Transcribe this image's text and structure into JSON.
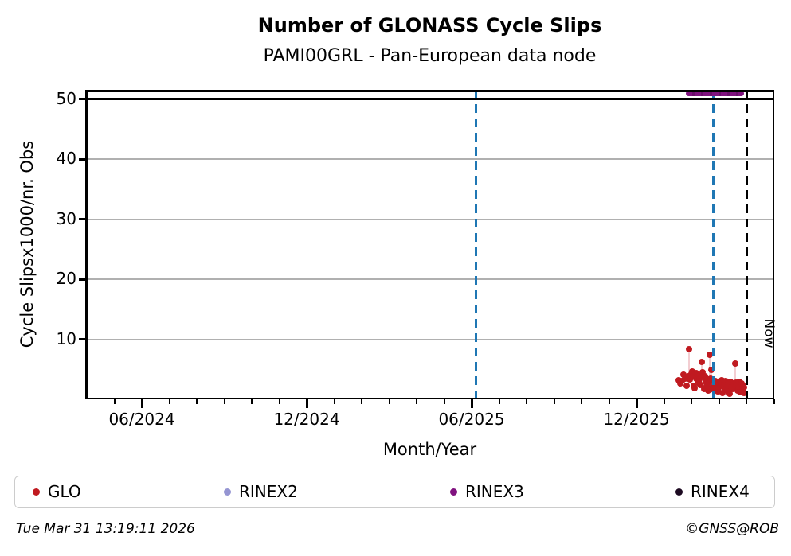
{
  "title": "Number of GLONASS Cycle Slips",
  "subtitle": "PAMI00GRL - Pan-European data node",
  "footer": {
    "timestamp": "Tue Mar 31 13:19:11 2026",
    "credit": "©GNSS@ROB"
  },
  "legend": [
    {
      "label": "GLO",
      "color": "#c01a20"
    },
    {
      "label": "RINEX2",
      "color": "#9595d2"
    },
    {
      "label": "RINEX3",
      "color": "#80127f"
    },
    {
      "label": "RINEX4",
      "color": "#1d0a22"
    }
  ],
  "chart_data": {
    "type": "scatter",
    "title": "Number of GLONASS Cycle Slips",
    "subtitle": "PAMI00GRL - Pan-European data node",
    "xlabel": "Month/Year",
    "ylabel": "Cycle Slipsx1000/nr. Obs",
    "x_unit": "months since 2024-01-01",
    "xlim": [
      2.94,
      28.02
    ],
    "ylim": [
      0,
      51.5
    ],
    "grid": "horizontal-only",
    "grid_color": "#b0b0b0",
    "x_major_ticks": [
      {
        "m": 5,
        "label": "06/2024"
      },
      {
        "m": 11,
        "label": "12/2024"
      },
      {
        "m": 17,
        "label": "06/2025"
      },
      {
        "m": 23,
        "label": "12/2025"
      }
    ],
    "x_minor_tick_months": [
      4,
      5,
      6,
      7,
      8,
      9,
      10,
      11,
      12,
      13,
      14,
      15,
      16,
      17,
      18,
      19,
      20,
      21,
      22,
      23,
      24,
      25,
      26,
      27,
      28
    ],
    "y_ticks": [
      10,
      20,
      30,
      40,
      50
    ],
    "annotations": {
      "threshold_line": {
        "v": 50,
        "color": "#000000",
        "style": "solid"
      },
      "event_lines": [
        {
          "m": 17.15,
          "color": "#1f77b4",
          "style": "dashed"
        },
        {
          "m": 25.8,
          "color": "#1f77b4",
          "style": "dashed"
        }
      ],
      "now_line": {
        "m": 27.0,
        "label": "Now",
        "color": "#000000",
        "style": "dashed"
      },
      "rinex3_span": {
        "m_start": 24.8,
        "m_end": 26.91,
        "v": 50.9,
        "color": "#80127f"
      }
    },
    "series": [
      {
        "name": "GLO",
        "color": "#c01a20",
        "points": [
          [
            24.53,
            3.2
          ],
          [
            24.6,
            2.7
          ],
          [
            24.66,
            3.0
          ],
          [
            24.72,
            4.1
          ],
          [
            24.78,
            3.4
          ],
          [
            24.84,
            2.2
          ],
          [
            24.88,
            3.8
          ],
          [
            24.91,
            8.3
          ],
          [
            24.94,
            3.3
          ],
          [
            24.97,
            3.6
          ],
          [
            25.0,
            4.3
          ],
          [
            25.03,
            4.6
          ],
          [
            25.06,
            3.9
          ],
          [
            25.09,
            2.3
          ],
          [
            25.13,
            1.9
          ],
          [
            25.16,
            3.5
          ],
          [
            25.18,
            4.4
          ],
          [
            25.22,
            3.1
          ],
          [
            25.25,
            4.0
          ],
          [
            25.28,
            2.6
          ],
          [
            25.3,
            3.3
          ],
          [
            25.33,
            2.4
          ],
          [
            25.38,
            6.2
          ],
          [
            25.4,
            4.5
          ],
          [
            25.43,
            3.7
          ],
          [
            25.47,
            1.7
          ],
          [
            25.5,
            3.8
          ],
          [
            25.52,
            2.9
          ],
          [
            25.55,
            2.2
          ],
          [
            25.57,
            3.3
          ],
          [
            25.6,
            2.8
          ],
          [
            25.62,
            1.45
          ],
          [
            25.67,
            7.4
          ],
          [
            25.7,
            3.5
          ],
          [
            25.72,
            4.9
          ],
          [
            25.74,
            3.0
          ],
          [
            25.76,
            2.0
          ],
          [
            25.81,
            1.6
          ],
          [
            25.84,
            2.1
          ],
          [
            25.86,
            3.0
          ],
          [
            25.9,
            2.5
          ],
          [
            25.93,
            2.3
          ],
          [
            25.95,
            1.3
          ],
          [
            25.98,
            1.8
          ],
          [
            26.0,
            2.9
          ],
          [
            26.04,
            3.1
          ],
          [
            26.06,
            2.7
          ],
          [
            26.09,
            2.2
          ],
          [
            26.11,
            3.2
          ],
          [
            26.13,
            1.1
          ],
          [
            26.16,
            2.9
          ],
          [
            26.18,
            2.6
          ],
          [
            26.22,
            1.9
          ],
          [
            26.25,
            3.1
          ],
          [
            26.27,
            2.4
          ],
          [
            26.31,
            1.4
          ],
          [
            26.34,
            2.7
          ],
          [
            26.36,
            2.25
          ],
          [
            26.4,
            0.9
          ],
          [
            26.43,
            2.9
          ],
          [
            26.45,
            2.0
          ],
          [
            26.47,
            2.3
          ],
          [
            26.5,
            1.7
          ],
          [
            26.52,
            2.0
          ],
          [
            26.54,
            2.6
          ],
          [
            26.59,
            6.0
          ],
          [
            26.61,
            2.8
          ],
          [
            26.63,
            2.3
          ],
          [
            26.66,
            2.4
          ],
          [
            26.68,
            1.5
          ],
          [
            26.7,
            1.8
          ],
          [
            26.72,
            2.1
          ],
          [
            26.75,
            2.9
          ],
          [
            26.77,
            1.2
          ],
          [
            26.79,
            2.2
          ],
          [
            26.81,
            2.5
          ],
          [
            26.84,
            2.6
          ],
          [
            26.86,
            1.8
          ],
          [
            26.88,
            2.3
          ],
          [
            26.9,
            1.0
          ],
          [
            26.92,
            2.0
          ]
        ]
      }
    ],
    "error_stems": {
      "color": "#f3ced2",
      "segments": [
        [
          24.91,
          8.3,
          4.2
        ],
        [
          25.38,
          6.2,
          3.9
        ],
        [
          25.67,
          7.4,
          4.1
        ],
        [
          25.72,
          4.9,
          2.4
        ],
        [
          26.59,
          6.0,
          2.5
        ],
        [
          25.18,
          4.4,
          2.8
        ],
        [
          25.03,
          4.6,
          2.9
        ],
        [
          24.72,
          4.1,
          2.7
        ],
        [
          26.25,
          3.1,
          1.8
        ]
      ]
    }
  }
}
